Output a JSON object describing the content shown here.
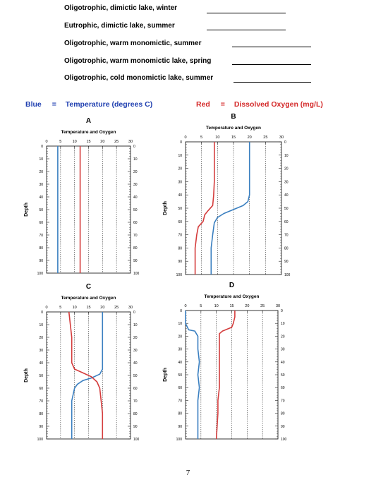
{
  "questions": [
    "Oligotrophic, dimictic lake, winter",
    "Eutrophic, dimictic lake, summer",
    "Oligotrophic, warm monomictic, summer",
    "Oligotrophic, warm monomictic lake, spring",
    "Oligotrophic, cold monomictic lake, summer"
  ],
  "legend": {
    "blue_word": "Blue",
    "blue_eq": "=",
    "blue_desc": "Temperature (degrees C)",
    "red_word": "Red",
    "red_eq": "=",
    "red_desc": "Dissolved Oxygen (mg/L)"
  },
  "colors": {
    "temperature": "#3a7fc0",
    "oxygen": "#d43c3c"
  },
  "page_number": "7",
  "chart_data": [
    {
      "type": "line",
      "letter": "A",
      "title": "Temperature and Oxygen",
      "ylabel": "Depth",
      "xlim": [
        0,
        30
      ],
      "ylim": [
        0,
        100
      ],
      "x_ticks": [
        "0",
        "5",
        "10",
        "15",
        "20",
        "25",
        "30"
      ],
      "y_ticks": [
        "0",
        "10",
        "20",
        "30",
        "40",
        "50",
        "60",
        "70",
        "80",
        "90",
        "100"
      ],
      "series": [
        {
          "kind": "temperature",
          "points": [
            [
              4,
              0
            ],
            [
              4,
              100
            ]
          ]
        },
        {
          "kind": "oxygen",
          "points": [
            [
              12,
              0
            ],
            [
              12,
              100
            ]
          ]
        }
      ]
    },
    {
      "type": "line",
      "letter": "B",
      "title": "Temperature and Oxygen",
      "ylabel": "Depth",
      "xlim": [
        0,
        30
      ],
      "ylim": [
        0,
        100
      ],
      "x_ticks": [
        "0",
        "5",
        "10",
        "15",
        "20",
        "25",
        "30"
      ],
      "y_ticks": [
        "0",
        "10",
        "20",
        "30",
        "40",
        "50",
        "60",
        "70",
        "80",
        "90",
        "100"
      ],
      "series": [
        {
          "kind": "temperature",
          "points": [
            [
              20,
              0
            ],
            [
              20,
              20
            ],
            [
              20,
              40
            ],
            [
              19.5,
              45
            ],
            [
              18,
              48
            ],
            [
              15,
              51
            ],
            [
              12,
              54
            ],
            [
              10,
              57
            ],
            [
              9,
              61
            ],
            [
              8.5,
              70
            ],
            [
              8,
              80
            ],
            [
              8,
              100
            ]
          ]
        },
        {
          "kind": "oxygen",
          "points": [
            [
              9,
              0
            ],
            [
              9,
              10
            ],
            [
              9,
              20
            ],
            [
              9,
              30
            ],
            [
              8.8,
              40
            ],
            [
              8.5,
              48
            ],
            [
              7,
              52
            ],
            [
              6,
              55
            ],
            [
              5.5,
              60
            ],
            [
              4,
              64
            ],
            [
              3.5,
              70
            ],
            [
              3,
              80
            ],
            [
              3,
              100
            ]
          ]
        }
      ]
    },
    {
      "type": "line",
      "letter": "C",
      "title": "Temperature and Oxygen",
      "ylabel": "Depth",
      "xlim": [
        0,
        30
      ],
      "ylim": [
        0,
        100
      ],
      "x_ticks": [
        "0",
        "5",
        "10",
        "15",
        "20",
        "25",
        "30"
      ],
      "y_ticks": [
        "0",
        "10",
        "20",
        "30",
        "40",
        "50",
        "60",
        "70",
        "80",
        "90",
        "100"
      ],
      "series": [
        {
          "kind": "temperature",
          "points": [
            [
              20,
              0
            ],
            [
              20,
              20
            ],
            [
              20,
              40
            ],
            [
              20,
              45
            ],
            [
              19,
              49
            ],
            [
              16,
              52
            ],
            [
              13,
              54
            ],
            [
              11,
              57
            ],
            [
              10,
              60
            ],
            [
              9.5,
              65
            ],
            [
              9,
              70
            ],
            [
              9,
              80
            ],
            [
              9,
              100
            ]
          ]
        },
        {
          "kind": "oxygen",
          "points": [
            [
              8,
              0
            ],
            [
              8.5,
              10
            ],
            [
              9,
              20
            ],
            [
              9,
              30
            ],
            [
              9,
              40
            ],
            [
              10,
              45
            ],
            [
              13,
              48
            ],
            [
              16,
              51
            ],
            [
              18,
              55
            ],
            [
              19,
              60
            ],
            [
              19.5,
              70
            ],
            [
              20,
              80
            ],
            [
              20,
              100
            ]
          ]
        }
      ]
    },
    {
      "type": "line",
      "letter": "D",
      "title": "Temperature and Oxygen",
      "ylabel": "Depth",
      "xlim": [
        0,
        30
      ],
      "ylim": [
        0,
        100
      ],
      "x_ticks": [
        "0",
        "5",
        "10",
        "15",
        "20",
        "25",
        "30"
      ],
      "y_ticks": [
        "0",
        "10",
        "20",
        "30",
        "40",
        "50",
        "60",
        "70",
        "80",
        "90",
        "100"
      ],
      "series": [
        {
          "kind": "temperature",
          "points": [
            [
              0,
              0
            ],
            [
              0,
              10
            ],
            [
              1,
              15
            ],
            [
              3,
              16
            ],
            [
              4,
              20
            ],
            [
              4,
              30
            ],
            [
              4.5,
              40
            ],
            [
              4,
              50
            ],
            [
              4.5,
              60
            ],
            [
              4,
              70
            ],
            [
              4,
              80
            ],
            [
              4,
              100
            ]
          ]
        },
        {
          "kind": "oxygen",
          "points": [
            [
              16,
              0
            ],
            [
              16,
              5
            ],
            [
              15.5,
              10
            ],
            [
              15,
              13
            ],
            [
              12,
              16
            ],
            [
              11,
              18
            ],
            [
              11,
              30
            ],
            [
              11,
              40
            ],
            [
              11,
              60
            ],
            [
              10.5,
              70
            ],
            [
              10.5,
              80
            ],
            [
              10,
              100
            ]
          ]
        }
      ]
    }
  ]
}
